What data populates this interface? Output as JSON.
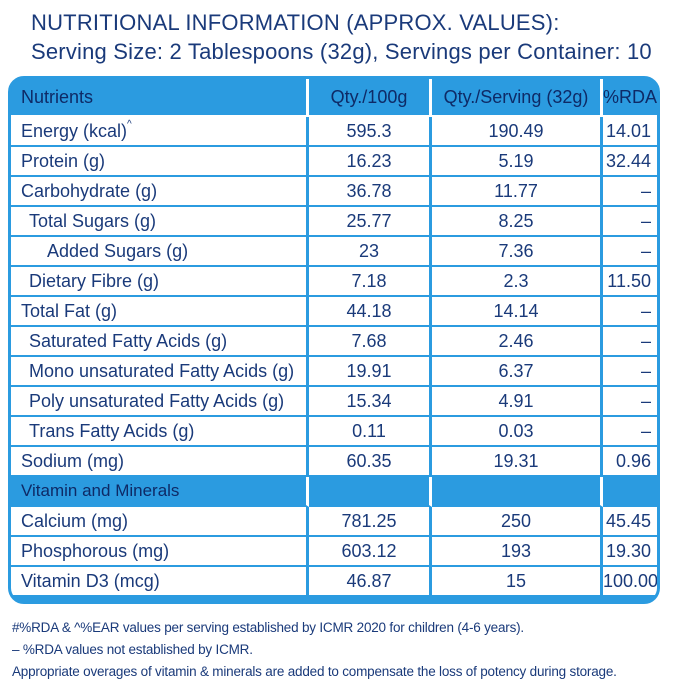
{
  "title": {
    "line1": "NUTRITIONAL INFORMATION (APPROX. VALUES):",
    "line2": "Serving Size: 2 Tablespoons (32g), Servings per Container: 10"
  },
  "colors": {
    "accent_blue": "#2b9be0",
    "text_navy": "#1a3a7a",
    "background": "#ffffff"
  },
  "table": {
    "headers": {
      "nutrients": "Nutrients",
      "per100": "Qty./100g",
      "perServing": "Qty./Serving (32g)",
      "rda": "%RDA",
      "rda_mark": "#"
    },
    "rows": [
      {
        "name": "Energy (kcal)",
        "mark": "^",
        "per100": "595.3",
        "perServing": "190.49",
        "rda": "14.01"
      },
      {
        "name": "Protein (g)",
        "per100": "16.23",
        "perServing": "5.19",
        "rda": "32.44"
      },
      {
        "name": "Carbohydrate (g)",
        "per100": "36.78",
        "perServing": "11.77",
        "rda": "–"
      },
      {
        "name": "Total Sugars (g)",
        "per100": "25.77",
        "perServing": "8.25",
        "rda": "–"
      },
      {
        "name": "Added Sugars (g)",
        "per100": "23",
        "perServing": "7.36",
        "rda": "–"
      },
      {
        "name": "Dietary Fibre (g)",
        "per100": "7.18",
        "perServing": "2.3",
        "rda": "11.50"
      },
      {
        "name": "Total Fat (g)",
        "per100": "44.18",
        "perServing": "14.14",
        "rda": "–"
      },
      {
        "name": "Saturated Fatty Acids (g)",
        "per100": "7.68",
        "perServing": "2.46",
        "rda": "–"
      },
      {
        "name": "Mono unsaturated Fatty Acids (g)",
        "per100": "19.91",
        "perServing": "6.37",
        "rda": "–"
      },
      {
        "name": "Poly unsaturated Fatty Acids (g)",
        "per100": "15.34",
        "perServing": "4.91",
        "rda": "–"
      },
      {
        "name": "Trans Fatty Acids (g)",
        "per100": "0.11",
        "perServing": "0.03",
        "rda": "–"
      },
      {
        "name": "Sodium (mg)",
        "per100": "60.35",
        "perServing": "19.31",
        "rda": "0.96"
      }
    ],
    "section_label": "Vitamin and Minerals",
    "vitamin_rows": [
      {
        "name": "Calcium (mg)",
        "per100": "781.25",
        "perServing": "250",
        "rda": "45.45"
      },
      {
        "name": "Phosphorous (mg)",
        "per100": "603.12",
        "perServing": "193",
        "rda": "19.30"
      },
      {
        "name": "Vitamin D3 (mcg)",
        "per100": "46.87",
        "perServing": "15",
        "rda": "100.00"
      }
    ]
  },
  "notes": [
    "#%RDA & ^%EAR values per serving established by ICMR 2020 for children (4-6 years).",
    "– %RDA values not established by ICMR.",
    "Appropriate overages of vitamin & minerals are added to compensate the loss of potency during storage."
  ]
}
